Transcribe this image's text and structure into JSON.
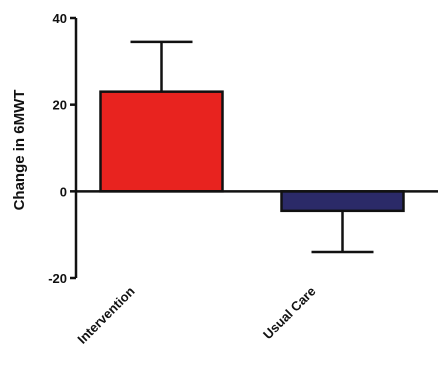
{
  "chart_data": {
    "type": "bar",
    "title": "",
    "xlabel": "",
    "ylabel": "Change in  6MWT",
    "ylim": [
      -20,
      40
    ],
    "yticks": [
      -20,
      0,
      20,
      40
    ],
    "categories": [
      "Intervention",
      "Usual Care"
    ],
    "values": [
      23,
      -4.5
    ],
    "error_bars": [
      11.5,
      9.5
    ],
    "colors": [
      "#e8231f",
      "#2b2a68"
    ],
    "grid": false,
    "legend": "none"
  }
}
